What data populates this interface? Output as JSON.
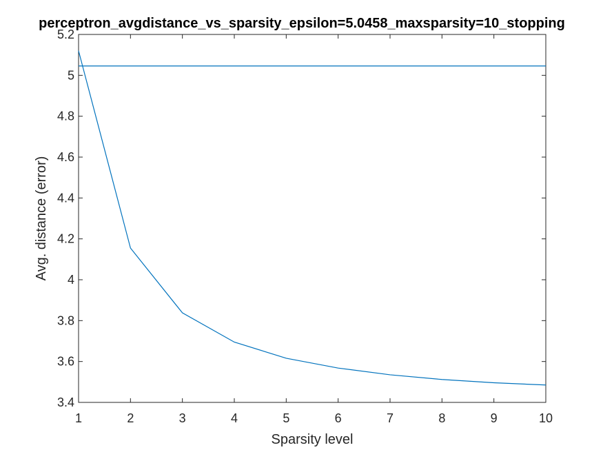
{
  "chart_data": {
    "type": "line",
    "title": "perceptron_avgdistance_vs_sparsity_epsilon=5.0458_maxsparsity=10_stopping",
    "xlabel": "Sparsity level",
    "ylabel": "Avg. distance (error)",
    "xlim": [
      1,
      10
    ],
    "ylim": [
      3.4,
      5.2
    ],
    "xticks": [
      "1",
      "2",
      "3",
      "4",
      "5",
      "6",
      "7",
      "8",
      "9",
      "10"
    ],
    "yticks": [
      "3.4",
      "3.6",
      "3.8",
      "4",
      "4.2",
      "4.4",
      "4.6",
      "4.8",
      "5",
      "5.2"
    ],
    "grid": false,
    "legend": "none",
    "line_color": "#0072BD",
    "series": [
      {
        "x": [
          1,
          2,
          3,
          4,
          5,
          6,
          7,
          8,
          9,
          10
        ],
        "values": [
          5.12,
          4.155,
          3.838,
          3.695,
          3.616,
          3.568,
          3.535,
          3.512,
          3.496,
          3.485
        ]
      },
      {
        "x": [
          1,
          10
        ],
        "values": [
          5.0458,
          5.0458
        ]
      }
    ]
  }
}
